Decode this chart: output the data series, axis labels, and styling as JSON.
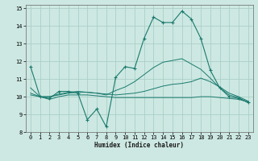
{
  "xlabel": "Humidex (Indice chaleur)",
  "xlim": [
    -0.5,
    23.5
  ],
  "ylim": [
    8,
    15.2
  ],
  "yticks": [
    8,
    9,
    10,
    11,
    12,
    13,
    14,
    15
  ],
  "xticks": [
    0,
    1,
    2,
    3,
    4,
    5,
    6,
    7,
    8,
    9,
    10,
    11,
    12,
    13,
    14,
    15,
    16,
    17,
    18,
    19,
    20,
    21,
    22,
    23
  ],
  "background_color": "#cde8e2",
  "grid_color": "#aacfc8",
  "line_color": "#1a7a6e",
  "line1_x": [
    0,
    1,
    2,
    3,
    4,
    5,
    6,
    7,
    8,
    9,
    10,
    11,
    12,
    13,
    14,
    15,
    16,
    17,
    18,
    19,
    20,
    21,
    22,
    23
  ],
  "line1_y": [
    11.7,
    10.0,
    9.9,
    10.3,
    10.3,
    10.2,
    8.7,
    9.3,
    8.3,
    11.1,
    11.7,
    11.6,
    13.3,
    14.5,
    14.2,
    14.2,
    14.85,
    14.4,
    13.3,
    11.5,
    10.5,
    10.0,
    9.9,
    9.7
  ],
  "line2_x": [
    0,
    1,
    2,
    3,
    4,
    5,
    6,
    7,
    8,
    9,
    10,
    11,
    12,
    13,
    14,
    15,
    16,
    17,
    18,
    19,
    20,
    21,
    22,
    23
  ],
  "line2_y": [
    10.1,
    10.0,
    9.85,
    10.0,
    10.1,
    10.1,
    10.1,
    10.05,
    10.0,
    9.95,
    9.95,
    9.95,
    9.95,
    9.95,
    9.95,
    9.95,
    9.95,
    9.95,
    10.0,
    10.0,
    9.95,
    9.9,
    9.85,
    9.7
  ],
  "line3_x": [
    0,
    1,
    2,
    3,
    4,
    5,
    6,
    7,
    8,
    9,
    10,
    11,
    12,
    13,
    14,
    15,
    16,
    17,
    18,
    19,
    20,
    21,
    22,
    23
  ],
  "line3_y": [
    10.2,
    10.0,
    10.0,
    10.1,
    10.2,
    10.25,
    10.25,
    10.2,
    10.15,
    10.1,
    10.15,
    10.2,
    10.3,
    10.45,
    10.6,
    10.7,
    10.75,
    10.85,
    11.05,
    10.85,
    10.55,
    10.2,
    10.0,
    9.75
  ],
  "line4_x": [
    0,
    1,
    2,
    3,
    4,
    5,
    6,
    7,
    8,
    9,
    10,
    11,
    12,
    13,
    14,
    15,
    16,
    17,
    18,
    19,
    20,
    21,
    22,
    23
  ],
  "line4_y": [
    10.5,
    10.0,
    10.0,
    10.15,
    10.25,
    10.3,
    10.25,
    10.2,
    10.1,
    10.35,
    10.55,
    10.85,
    11.25,
    11.65,
    11.95,
    12.05,
    12.15,
    11.85,
    11.55,
    11.05,
    10.5,
    10.1,
    9.95,
    9.65
  ]
}
